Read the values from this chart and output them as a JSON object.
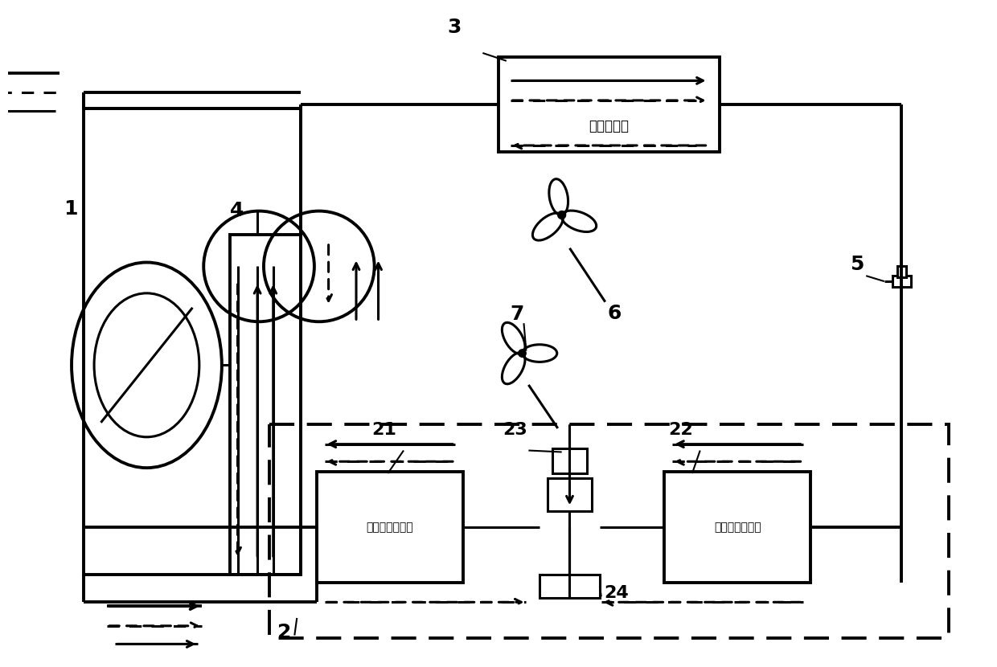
{
  "bg_color": "#ffffff",
  "lc": "#000000",
  "fig_w": 12.4,
  "fig_h": 8.3,
  "text_outdoor": "室外换热器",
  "text_indoor1": "第一室内换热器",
  "text_indoor2": "第二室内换热器"
}
